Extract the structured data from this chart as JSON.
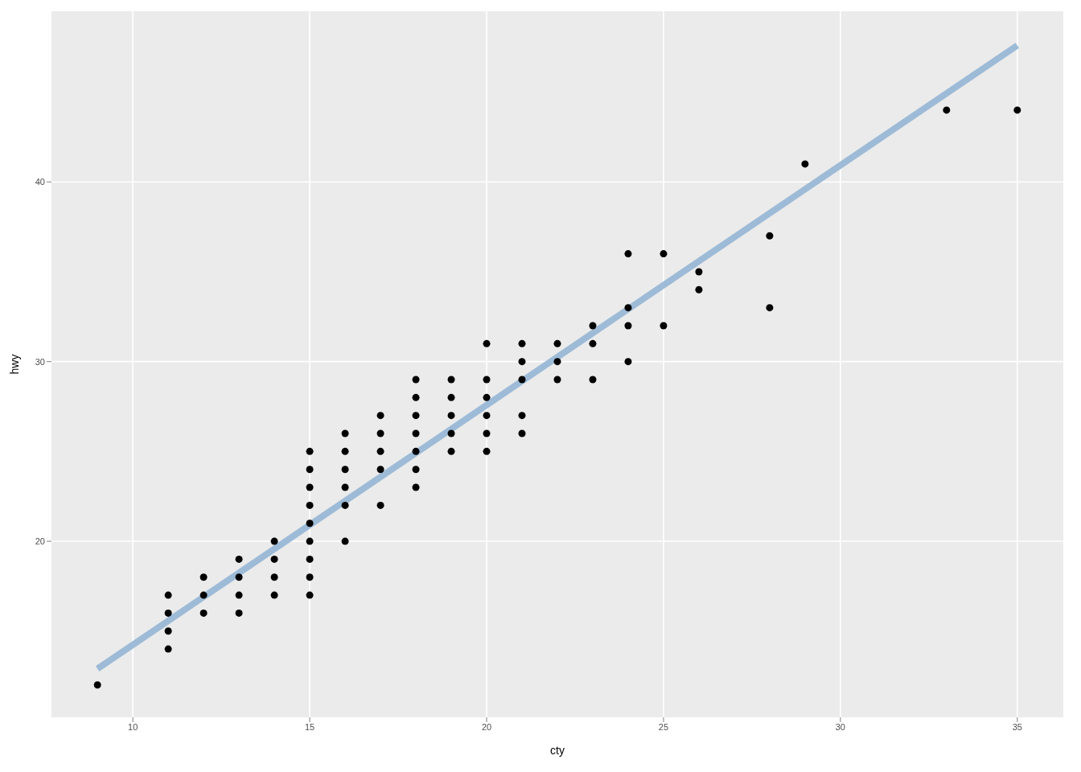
{
  "chart_data": {
    "type": "scatter",
    "xlabel": "cty",
    "ylabel": "hwy",
    "xlim": [
      7.7,
      36.3
    ],
    "ylim": [
      10.2,
      49.5
    ],
    "xticks": [
      10,
      15,
      20,
      25,
      30,
      35
    ],
    "yticks": [
      20,
      30,
      40
    ],
    "grid": true,
    "legend": false,
    "series": [
      {
        "type": "scatter",
        "color": "#000000",
        "marker": "circle",
        "x": [
          9,
          11,
          11,
          11,
          11,
          12,
          12,
          12,
          13,
          13,
          13,
          13,
          14,
          14,
          14,
          14,
          15,
          15,
          15,
          15,
          15,
          15,
          15,
          15,
          15,
          16,
          16,
          16,
          16,
          16,
          16,
          17,
          17,
          17,
          17,
          17,
          18,
          18,
          18,
          18,
          18,
          18,
          18,
          19,
          19,
          19,
          19,
          19,
          20,
          20,
          20,
          20,
          20,
          20,
          21,
          21,
          21,
          21,
          21,
          22,
          22,
          22,
          23,
          23,
          23,
          24,
          24,
          24,
          24,
          25,
          25,
          26,
          26,
          28,
          28,
          29,
          33,
          35
        ],
        "values": [
          12,
          17,
          16,
          15,
          14,
          18,
          17,
          16,
          19,
          18,
          17,
          16,
          20,
          19,
          18,
          17,
          25,
          24,
          23,
          22,
          21,
          20,
          19,
          18,
          17,
          26,
          25,
          24,
          23,
          22,
          20,
          27,
          26,
          25,
          24,
          22,
          29,
          28,
          27,
          26,
          25,
          24,
          23,
          29,
          28,
          27,
          26,
          25,
          31,
          29,
          28,
          27,
          26,
          25,
          31,
          30,
          29,
          27,
          26,
          31,
          30,
          29,
          32,
          31,
          29,
          36,
          33,
          32,
          30,
          36,
          32,
          35,
          34,
          37,
          33,
          41,
          44,
          44
        ]
      },
      {
        "type": "line",
        "color": "#99b8d6",
        "marker": "none",
        "x": [
          9,
          35
        ],
        "values": [
          12.9,
          47.6
        ]
      }
    ]
  }
}
